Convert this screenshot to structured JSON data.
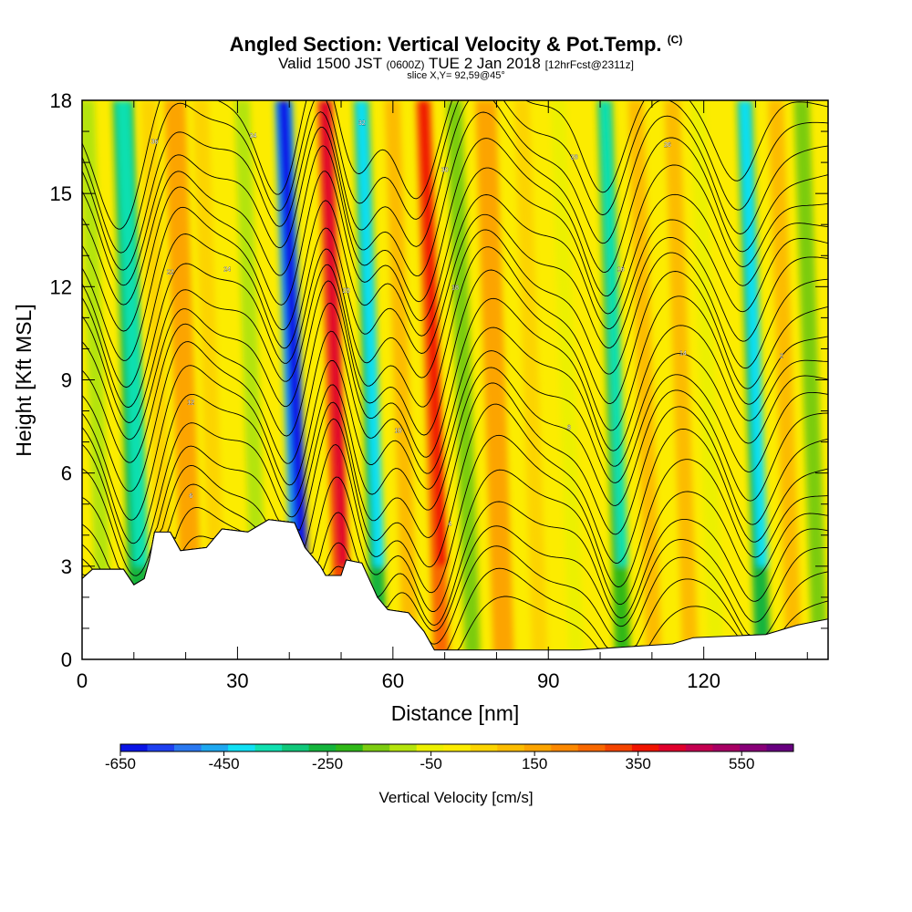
{
  "header": {
    "title": "Angled Section: Vertical Velocity & Pot.Temp.",
    "title_tag": "(C)",
    "valid_prefix": "Valid 1500 JST",
    "valid_utc": "(0600Z)",
    "valid_date": "TUE 2 Jan 2018",
    "forecast": "[12hrFcst@2311z]",
    "slice": "slice X,Y= 92,59@45°"
  },
  "chart_data": {
    "type": "heatmap",
    "xlabel": "Distance [nm]",
    "ylabel": "Height [Kft MSL]",
    "xlim": [
      0,
      144
    ],
    "ylim": [
      0,
      18
    ],
    "xticks": [
      0,
      30,
      60,
      90,
      120
    ],
    "yticks": [
      0,
      3,
      6,
      9,
      12,
      15,
      18
    ],
    "colorbar": {
      "title": "Vertical Velocity [cm/s]",
      "labels": [
        "-650",
        "-450",
        "-250",
        "-50",
        "150",
        "350",
        "550"
      ],
      "label_values": [
        -650,
        -450,
        -250,
        -50,
        150,
        350,
        550
      ],
      "step": 50,
      "range": [
        -650,
        650
      ],
      "colors": [
        "#0a14e6",
        "#1e40f0",
        "#2a78f0",
        "#1ea8f0",
        "#10e0f4",
        "#10e0b0",
        "#10c87a",
        "#14b43c",
        "#30b818",
        "#7ccc10",
        "#b4e40c",
        "#ecf000",
        "#fcec00",
        "#fcd400",
        "#fcbc00",
        "#fca400",
        "#fc8800",
        "#f86800",
        "#f44400",
        "#f01400",
        "#e0002c",
        "#c40050",
        "#a80064",
        "#880078",
        "#680080"
      ]
    },
    "velocity_bands": [
      {
        "x": 3,
        "width": 3,
        "value": -80
      },
      {
        "x": 10,
        "width": 4,
        "value": -240
      },
      {
        "x": 15,
        "width": 3,
        "value": 60
      },
      {
        "x": 20,
        "width": 4,
        "value": 140
      },
      {
        "x": 25,
        "width": 3,
        "value": 30
      },
      {
        "x": 33,
        "width": 3,
        "value": -120
      },
      {
        "x": 41,
        "width": 3.5,
        "value": -450
      },
      {
        "x": 49,
        "width": 3,
        "value": 320
      },
      {
        "x": 56,
        "width": 3,
        "value": -260
      },
      {
        "x": 62,
        "width": 3,
        "value": 80
      },
      {
        "x": 68,
        "width": 3,
        "value": 280
      },
      {
        "x": 74,
        "width": 3,
        "value": -150
      },
      {
        "x": 80,
        "width": 4,
        "value": 170
      },
      {
        "x": 87,
        "width": 3,
        "value": 60
      },
      {
        "x": 94,
        "width": 3,
        "value": -70
      },
      {
        "x": 103,
        "width": 3,
        "value": -220
      },
      {
        "x": 109,
        "width": 3,
        "value": 90
      },
      {
        "x": 116,
        "width": 3,
        "value": 110
      },
      {
        "x": 121,
        "width": 3,
        "value": -70
      },
      {
        "x": 130,
        "width": 3,
        "value": -280
      },
      {
        "x": 136,
        "width": 3,
        "value": 80
      },
      {
        "x": 141,
        "width": 3,
        "value": -150
      }
    ],
    "terrain": [
      [
        0,
        2.6
      ],
      [
        2,
        2.9
      ],
      [
        8,
        2.9
      ],
      [
        10,
        2.4
      ],
      [
        12,
        2.6
      ],
      [
        13,
        3.2
      ],
      [
        14,
        4.1
      ],
      [
        17,
        4.1
      ],
      [
        19,
        3.5
      ],
      [
        24,
        3.6
      ],
      [
        27,
        4.2
      ],
      [
        32,
        4.1
      ],
      [
        36,
        4.5
      ],
      [
        41,
        4.4
      ],
      [
        43,
        3.6
      ],
      [
        46,
        3.0
      ],
      [
        47,
        2.7
      ],
      [
        50,
        2.7
      ],
      [
        51,
        3.2
      ],
      [
        54,
        3.1
      ],
      [
        57,
        2.0
      ],
      [
        59,
        1.6
      ],
      [
        63,
        1.5
      ],
      [
        66,
        0.9
      ],
      [
        68,
        0.3
      ],
      [
        72,
        0.3
      ],
      [
        80,
        0.3
      ],
      [
        96,
        0.3
      ],
      [
        114,
        0.5
      ],
      [
        118,
        0.7
      ],
      [
        132,
        0.8
      ],
      [
        138,
        1.1
      ],
      [
        144,
        1.3
      ]
    ],
    "contour_labels": [
      {
        "x": 14,
        "y": 16.6,
        "text": "36"
      },
      {
        "x": 33,
        "y": 16.8,
        "text": "34"
      },
      {
        "x": 54,
        "y": 17.2,
        "text": "32"
      },
      {
        "x": 70,
        "y": 15.7,
        "text": "30"
      },
      {
        "x": 95,
        "y": 16.1,
        "text": "28"
      },
      {
        "x": 113,
        "y": 16.5,
        "text": "26"
      },
      {
        "x": 28,
        "y": 12.5,
        "text": "24"
      },
      {
        "x": 17,
        "y": 12.4,
        "text": "22"
      },
      {
        "x": 51,
        "y": 11.8,
        "text": "20"
      },
      {
        "x": 72,
        "y": 11.9,
        "text": "18"
      },
      {
        "x": 104,
        "y": 12.5,
        "text": "16"
      },
      {
        "x": 116,
        "y": 9.8,
        "text": "14"
      },
      {
        "x": 21,
        "y": 8.2,
        "text": "12"
      },
      {
        "x": 61,
        "y": 7.3,
        "text": "10"
      },
      {
        "x": 94,
        "y": 7.4,
        "text": "8"
      },
      {
        "x": 21,
        "y": 5.2,
        "text": "6"
      },
      {
        "x": 71,
        "y": 4.3,
        "text": "4"
      },
      {
        "x": 135,
        "y": 9.7,
        "text": "2"
      }
    ]
  }
}
